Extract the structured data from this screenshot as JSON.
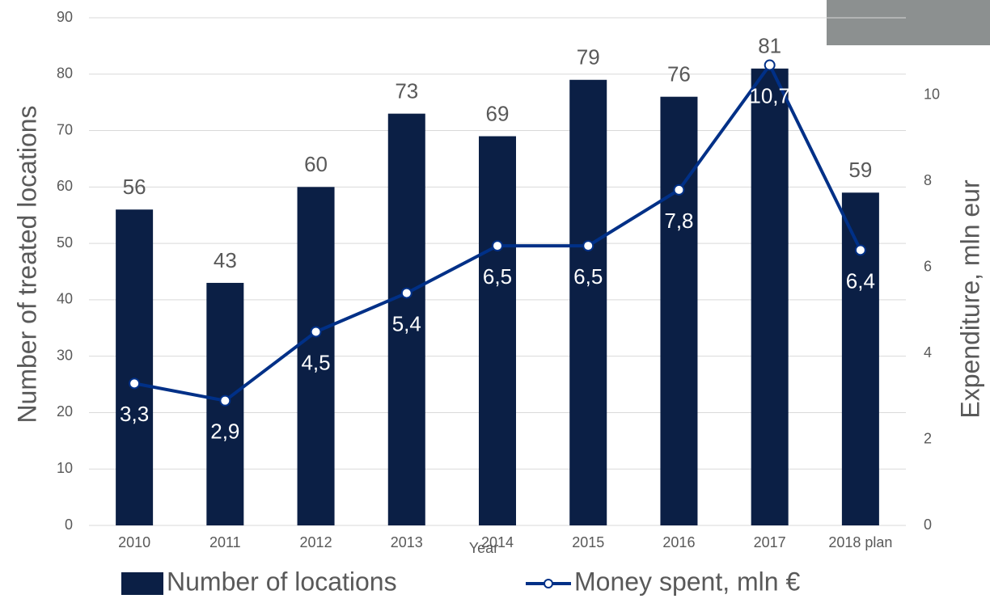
{
  "chart_data": {
    "type": "bar-line",
    "x_label": "Year",
    "y_label": "Number of treated locations",
    "y2_label": "Expenditure, mln eur",
    "categories": [
      "2010",
      "2011",
      "2012",
      "2013",
      "2014",
      "2015",
      "2016",
      "2017",
      "2018 plan"
    ],
    "series": [
      {
        "name": "Number of locations",
        "type": "bar",
        "color": "#0b1f45",
        "values": [
          56,
          43,
          60,
          73,
          69,
          79,
          76,
          81,
          59
        ]
      },
      {
        "name": "Money spent, mln €",
        "type": "line",
        "axis": "y2",
        "color": "#003087",
        "values": [
          3.3,
          2.9,
          4.5,
          5.4,
          6.5,
          6.5,
          7.8,
          10.7,
          6.4
        ],
        "value_labels": [
          "3,3",
          "2,9",
          "4,5",
          "5,4",
          "6,5",
          "6,5",
          "7,8",
          "10,7",
          "6,4"
        ]
      }
    ],
    "ylim": [
      0,
      90
    ],
    "yticks": [
      0,
      10,
      20,
      30,
      40,
      50,
      60,
      70,
      80,
      90
    ],
    "y2lim": [
      0,
      11.8
    ],
    "y2ticks": [
      0,
      2,
      4,
      6,
      8,
      10
    ],
    "grid": true,
    "legend": "bottom"
  }
}
